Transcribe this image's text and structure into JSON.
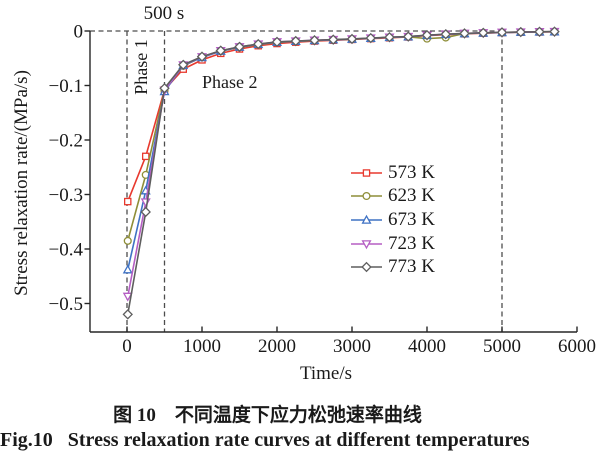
{
  "captions": {
    "zh": "图 10　不同温度下应力松弛速率曲线",
    "en": "Fig.10   Stress relaxation rate curves at different temperatures"
  },
  "chart_data": {
    "type": "line",
    "title": "",
    "xlabel": "Time/s",
    "ylabel": "Stress relaxation rate/(MPa/s)",
    "xlim": [
      -493,
      6000
    ],
    "ylim": [
      -0.552,
      0
    ],
    "grid": false,
    "legend_position": "center-right",
    "axis_color": "#262626",
    "guide_color": "#4d4d4d",
    "x_ticks": [
      0,
      1000,
      2000,
      3000,
      4000,
      5000,
      6000
    ],
    "x_tick_labels": [
      "0",
      "1000",
      "2000",
      "3000",
      "4000",
      "5000",
      "6000"
    ],
    "y_ticks": [
      0,
      -0.1,
      -0.2,
      -0.3,
      -0.4,
      -0.5
    ],
    "y_tick_labels": [
      "0",
      "−0.1",
      "−0.2",
      "−0.3",
      "−0.4",
      "−0.5"
    ],
    "annotations": [
      {
        "id": "time-500s",
        "text": "500 s"
      },
      {
        "id": "phase1",
        "text": "Phase 1"
      },
      {
        "id": "phase2",
        "text": "Phase 2"
      }
    ],
    "guide_lines": {
      "horizontal": [
        {
          "y": 0,
          "x_start": -493,
          "x_end": 5000,
          "style": "dashed"
        }
      ],
      "vertical": [
        {
          "x": 0,
          "style": "dashed"
        },
        {
          "x": 500,
          "style": "dashed"
        },
        {
          "x": 5000,
          "style": "dashed"
        }
      ]
    },
    "x": [
      10,
      250,
      500,
      750,
      1000,
      1250,
      1500,
      1750,
      2000,
      2250,
      2500,
      2750,
      3000,
      3250,
      3500,
      3750,
      4000,
      4250,
      4500,
      4750,
      5000,
      5250,
      5500,
      5700
    ],
    "series": [
      {
        "name": "573 K",
        "color": "#e8392e",
        "marker": "square",
        "values": [
          -0.313,
          -0.23,
          -0.108,
          -0.07,
          -0.053,
          -0.041,
          -0.033,
          -0.027,
          -0.023,
          -0.0205,
          -0.0185,
          -0.017,
          -0.0155,
          -0.014,
          -0.0125,
          -0.011,
          -0.0085,
          -0.0067,
          -0.0052,
          -0.004,
          -0.003,
          -0.0023,
          -0.0018,
          -0.0015
        ]
      },
      {
        "name": "623 K",
        "color": "#8e8e38",
        "marker": "circle",
        "values": [
          -0.385,
          -0.264,
          -0.109,
          -0.064,
          -0.048,
          -0.037,
          -0.03,
          -0.025,
          -0.021,
          -0.019,
          -0.0175,
          -0.0162,
          -0.015,
          -0.0134,
          -0.0118,
          -0.0106,
          -0.014,
          -0.012,
          -0.0046,
          -0.0035,
          -0.0027,
          -0.002,
          -0.0015,
          -0.0012
        ]
      },
      {
        "name": "673 K",
        "color": "#3f72c4",
        "marker": "triangle-up",
        "values": [
          -0.438,
          -0.293,
          -0.111,
          -0.063,
          -0.0485,
          -0.0368,
          -0.0296,
          -0.0245,
          -0.0205,
          -0.0188,
          -0.0174,
          -0.0161,
          -0.0149,
          -0.0133,
          -0.0117,
          -0.0105,
          -0.008,
          -0.0062,
          -0.0047,
          -0.0036,
          -0.0028,
          -0.0021,
          -0.0016,
          -0.0013
        ]
      },
      {
        "name": "723 K",
        "color": "#b55ec4",
        "marker": "triangle-down",
        "values": [
          -0.487,
          -0.314,
          -0.109,
          -0.0625,
          -0.0475,
          -0.0362,
          -0.0291,
          -0.0241,
          -0.0201,
          -0.0185,
          -0.0171,
          -0.0159,
          -0.0147,
          -0.0131,
          -0.0115,
          -0.0103,
          -0.0078,
          -0.006,
          -0.0045,
          -0.0034,
          -0.0026,
          -0.002,
          -0.0015,
          -0.0012
        ]
      },
      {
        "name": "773 K",
        "color": "#5e5e5e",
        "marker": "diamond",
        "values": [
          -0.52,
          -0.332,
          -0.105,
          -0.062,
          -0.047,
          -0.036,
          -0.029,
          -0.024,
          -0.02,
          -0.0184,
          -0.017,
          -0.0158,
          -0.0146,
          -0.013,
          -0.0114,
          -0.0102,
          -0.0076,
          -0.0058,
          -0.0044,
          -0.0033,
          -0.0025,
          -0.0019,
          -0.0014,
          -0.0011
        ]
      }
    ]
  }
}
